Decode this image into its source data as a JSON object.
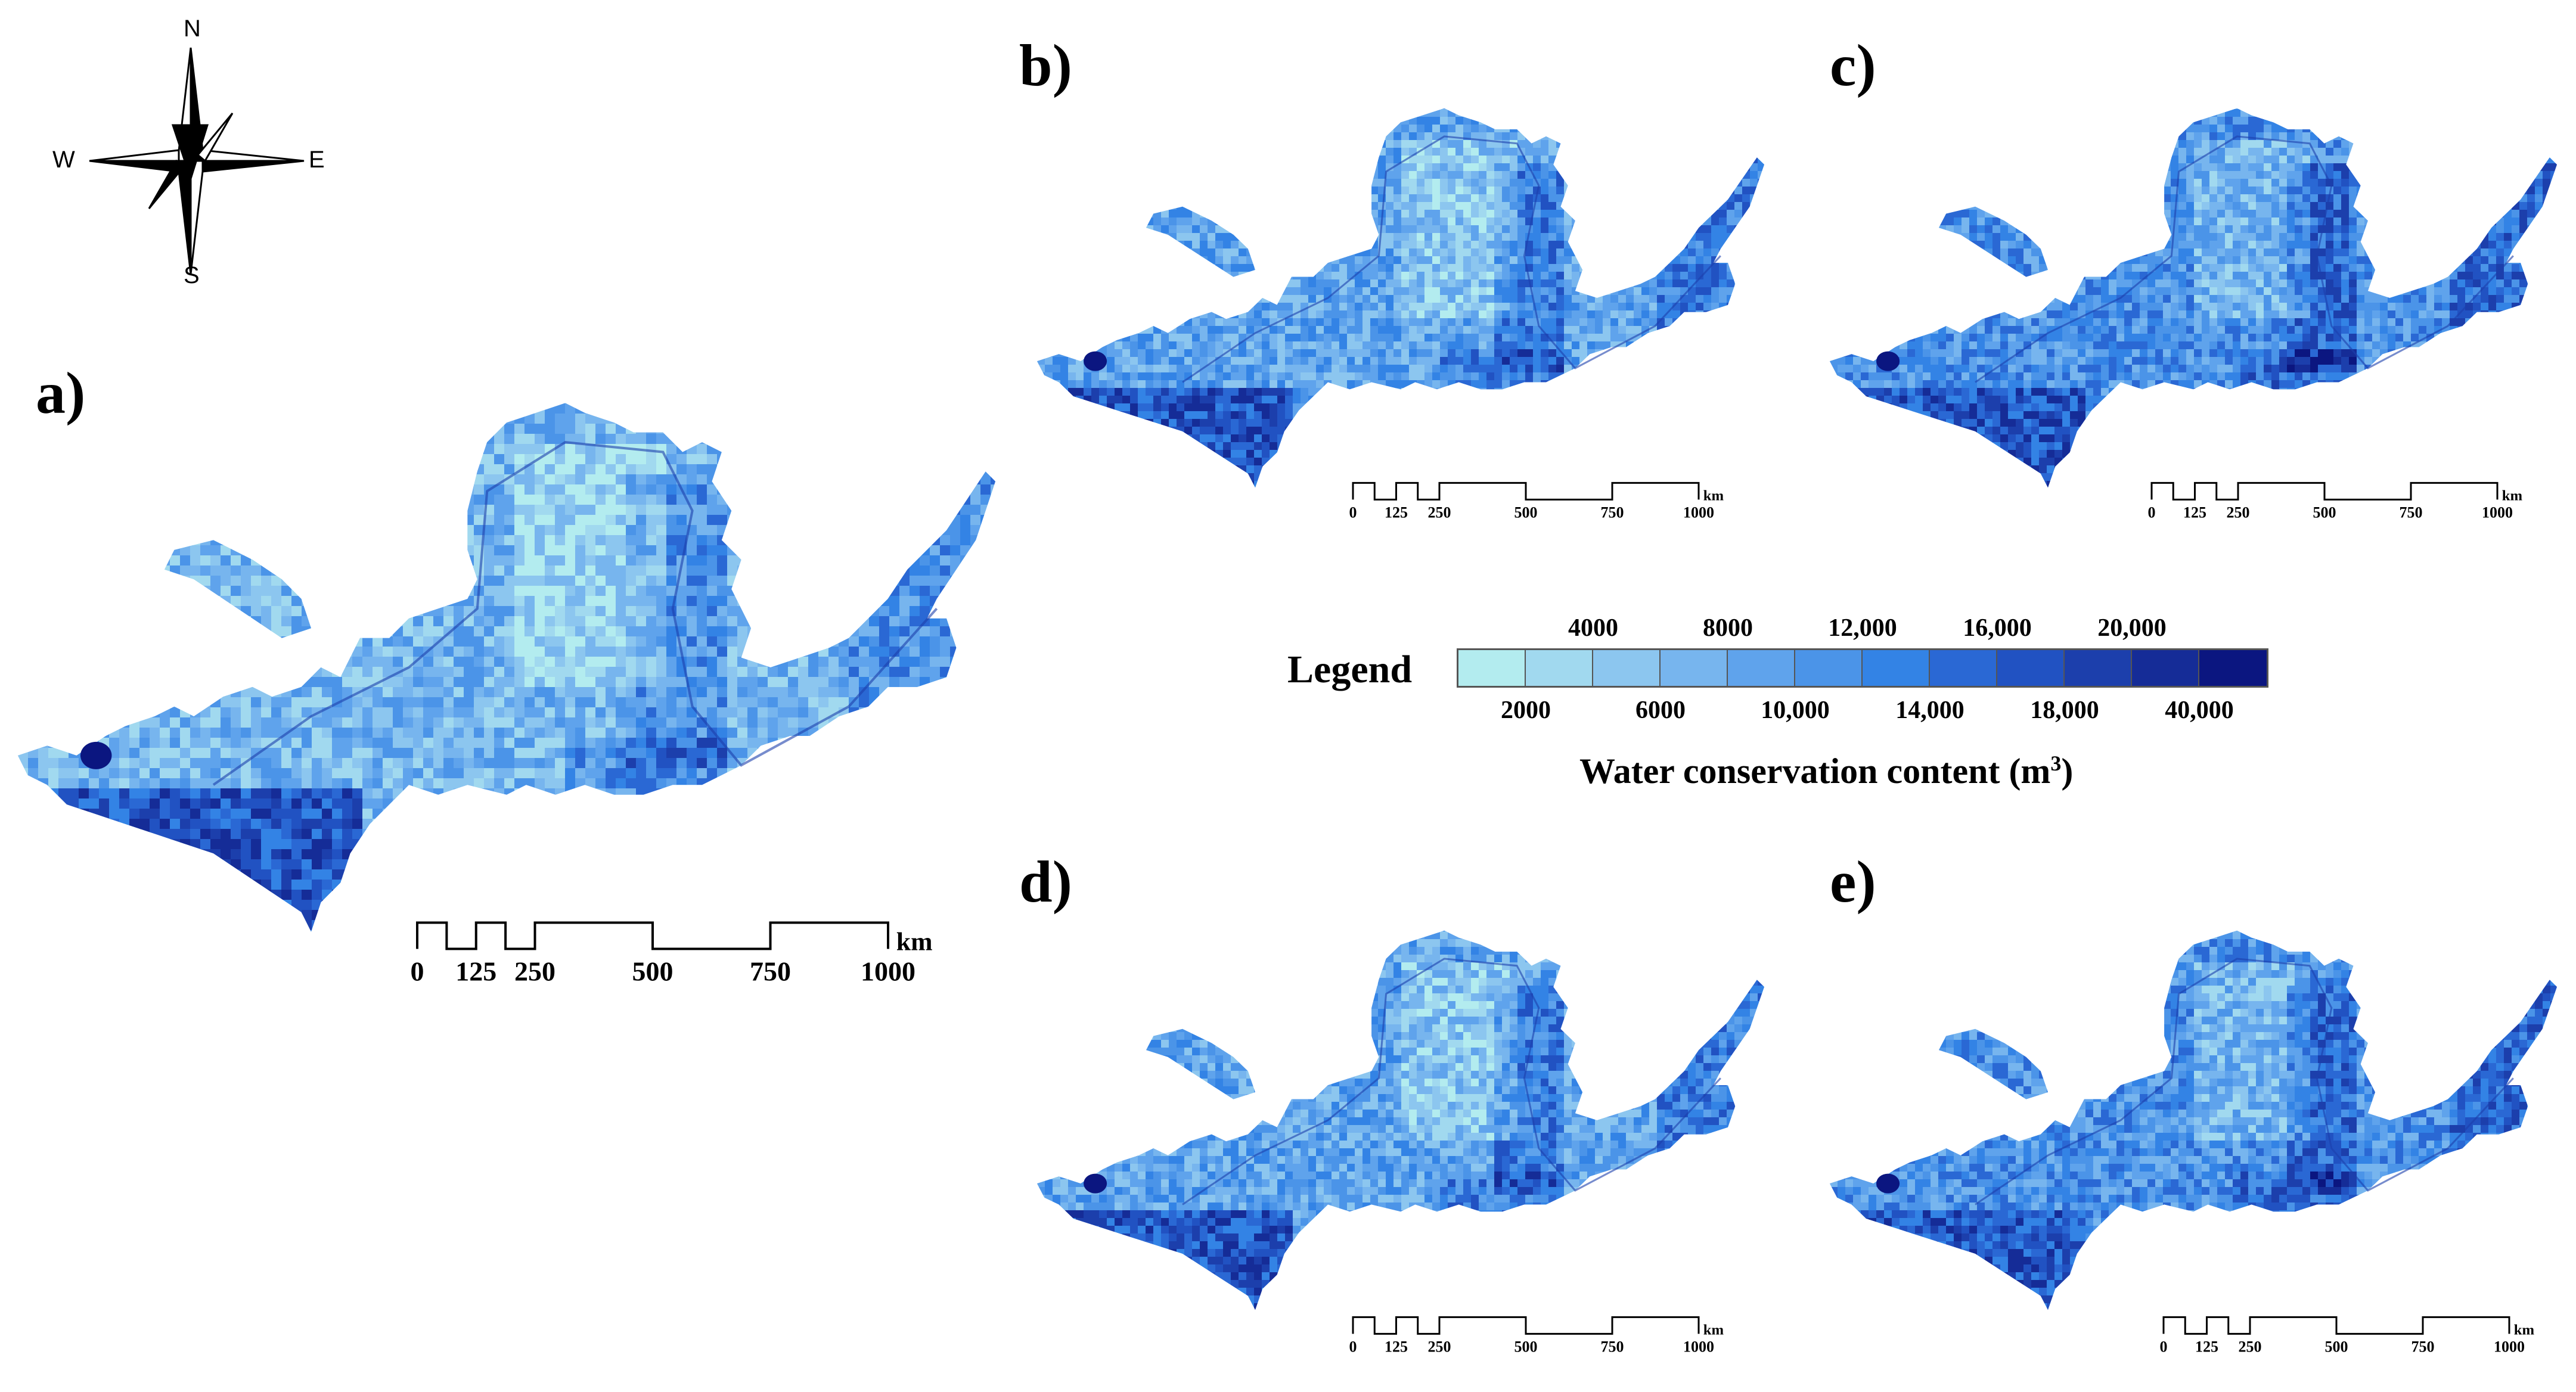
{
  "compass": {
    "north": "N",
    "south": "S",
    "east": "E",
    "west": "W"
  },
  "panels": [
    {
      "label": "a)"
    },
    {
      "label": "b)"
    },
    {
      "label": "c)"
    },
    {
      "label": "d)"
    },
    {
      "label": "e)"
    }
  ],
  "scale_bar": {
    "unit": "km",
    "ticks": [
      "0",
      "125",
      "250",
      "500",
      "750",
      "1000"
    ]
  },
  "legend": {
    "title": "Legend",
    "upper_labels": [
      "4000",
      "8000",
      "12,000",
      "16,000",
      "20,000"
    ],
    "lower_labels": [
      "2000",
      "6000",
      "10,000",
      "14,000",
      "18,000",
      "40,000"
    ],
    "caption": "Water conservation content (m",
    "caption_sup": "3",
    "caption_end": ")",
    "colors": [
      "#b3ecef",
      "#a1d9ef",
      "#8cc6ef",
      "#77b5ee",
      "#5fa3ec",
      "#4b94e8",
      "#3383e5",
      "#2a68d4",
      "#2152c2",
      "#1c3fac",
      "#152c97",
      "#0b1680"
    ]
  }
}
